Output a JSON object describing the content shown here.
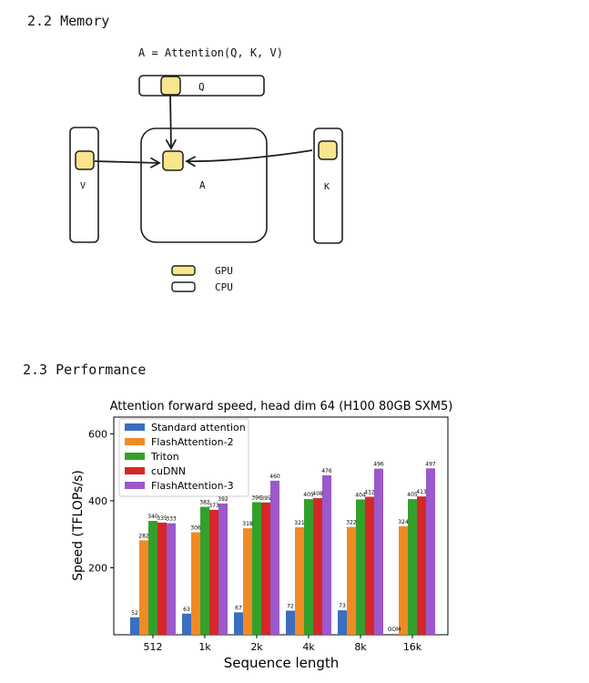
{
  "sections": {
    "memory_heading": "2.2 Memory",
    "performance_heading": "2.3 Performance"
  },
  "diagram": {
    "formula": "A = Attention(Q, K, V)",
    "q_label": "Q",
    "v_label": "V",
    "a_label": "A",
    "k_label": "K",
    "legend_gpu": "GPU",
    "legend_cpu": "CPU",
    "colors": {
      "gpu_fill": "#f8e58c",
      "cpu_fill": "#ffffff",
      "stroke": "#1e1e1e"
    }
  },
  "chart_data": {
    "type": "bar",
    "title": "Attention forward speed, head dim 64 (H100 80GB SXM5)",
    "xlabel": "Sequence length",
    "ylabel": "Speed (TFLOPs/s)",
    "categories": [
      "512",
      "1k",
      "2k",
      "4k",
      "8k",
      "16k"
    ],
    "ylim": [
      0,
      650
    ],
    "yticks": [
      200,
      400,
      600
    ],
    "legend_position": "top-left",
    "series": [
      {
        "name": "Standard attention",
        "color": "#3a6ebf",
        "values": [
          52,
          63,
          67,
          72,
          73,
          null
        ],
        "labels": [
          "52",
          "63",
          "67",
          "72",
          "73",
          "OOM"
        ]
      },
      {
        "name": "FlashAttention-2",
        "color": "#f08a24",
        "values": [
          282,
          306,
          318,
          321,
          322,
          324
        ],
        "labels": [
          "282",
          "306",
          "318",
          "321",
          "322",
          "324"
        ]
      },
      {
        "name": "Triton",
        "color": "#33a02c",
        "values": [
          340,
          382,
          396,
          405,
          404,
          405
        ],
        "labels": [
          "340",
          "382",
          "396",
          "405",
          "404",
          "405"
        ]
      },
      {
        "name": "cuDNN",
        "color": "#d62728",
        "values": [
          335,
          373,
          395,
          408,
          412,
          413
        ],
        "labels": [
          "335",
          "373",
          "395",
          "408",
          "412",
          "413"
        ]
      },
      {
        "name": "FlashAttention-3",
        "color": "#9b59c9",
        "values": [
          333,
          392,
          460,
          476,
          496,
          497
        ],
        "labels": [
          "333",
          "392",
          "460",
          "476",
          "496",
          "497"
        ]
      }
    ]
  }
}
